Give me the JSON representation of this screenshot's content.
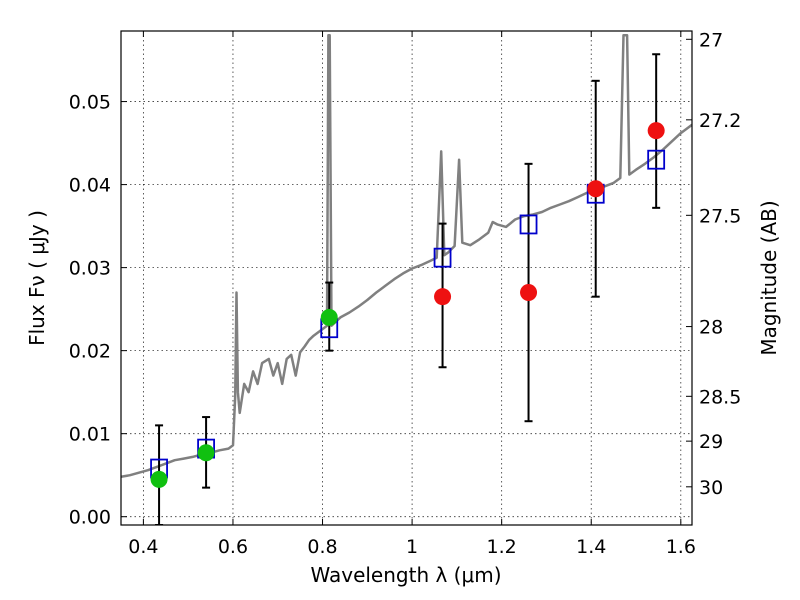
{
  "chart_data": {
    "type": "scatter",
    "xlabel": "Wavelength  λ (μm)",
    "ylabel": "Flux  Fν  ( μJy )",
    "y2label": "Magnitude (AB)",
    "xlim": [
      0.35,
      1.625
    ],
    "ylim": [
      -0.001,
      0.0585
    ],
    "grid": true,
    "x_ticks": [
      {
        "value": 0.4,
        "label": "0.4"
      },
      {
        "value": 0.6,
        "label": "0.6"
      },
      {
        "value": 0.8,
        "label": "0.8"
      },
      {
        "value": 1.0,
        "label": "1"
      },
      {
        "value": 1.2,
        "label": "1.2"
      },
      {
        "value": 1.4,
        "label": "1.4"
      },
      {
        "value": 1.6,
        "label": "1.6"
      }
    ],
    "y_ticks": [
      {
        "value": 0.0,
        "label": "0.00"
      },
      {
        "value": 0.01,
        "label": "0.01"
      },
      {
        "value": 0.02,
        "label": "0.02"
      },
      {
        "value": 0.03,
        "label": "0.03"
      },
      {
        "value": 0.04,
        "label": "0.04"
      },
      {
        "value": 0.05,
        "label": "0.05"
      }
    ],
    "y2_ticks": [
      {
        "flux": 0.0575,
        "label": "27"
      },
      {
        "flux": 0.0478,
        "label": "27.2"
      },
      {
        "flux": 0.0363,
        "label": "27.5"
      },
      {
        "flux": 0.0229,
        "label": "28"
      },
      {
        "flux": 0.0145,
        "label": "28.5"
      },
      {
        "flux": 0.0091,
        "label": "29"
      },
      {
        "flux": 0.0036,
        "label": "30"
      }
    ],
    "series": [
      {
        "kind": "line",
        "color": "#808080",
        "points": [
          [
            0.35,
            0.0048
          ],
          [
            0.37,
            0.005
          ],
          [
            0.39,
            0.0053
          ],
          [
            0.41,
            0.0056
          ],
          [
            0.43,
            0.006
          ],
          [
            0.45,
            0.0064
          ],
          [
            0.47,
            0.0068
          ],
          [
            0.49,
            0.007
          ],
          [
            0.51,
            0.0072
          ],
          [
            0.53,
            0.0075
          ],
          [
            0.55,
            0.0077
          ],
          [
            0.57,
            0.008
          ],
          [
            0.59,
            0.0082
          ],
          [
            0.6,
            0.0086
          ],
          [
            0.605,
            0.0145
          ],
          [
            0.608,
            0.027
          ],
          [
            0.611,
            0.015
          ],
          [
            0.615,
            0.0125
          ],
          [
            0.625,
            0.016
          ],
          [
            0.635,
            0.015
          ],
          [
            0.645,
            0.0175
          ],
          [
            0.655,
            0.016
          ],
          [
            0.665,
            0.0185
          ],
          [
            0.68,
            0.019
          ],
          [
            0.69,
            0.017
          ],
          [
            0.7,
            0.0185
          ],
          [
            0.71,
            0.016
          ],
          [
            0.72,
            0.019
          ],
          [
            0.73,
            0.0195
          ],
          [
            0.74,
            0.017
          ],
          [
            0.75,
            0.0198
          ],
          [
            0.76,
            0.0205
          ],
          [
            0.77,
            0.0213
          ],
          [
            0.78,
            0.0218
          ],
          [
            0.79,
            0.0222
          ],
          [
            0.8,
            0.0226
          ],
          [
            0.81,
            0.023
          ],
          [
            0.813,
            0.058
          ],
          [
            0.816,
            0.058
          ],
          [
            0.82,
            0.023
          ],
          [
            0.84,
            0.024
          ],
          [
            0.86,
            0.0246
          ],
          [
            0.88,
            0.0253
          ],
          [
            0.9,
            0.0261
          ],
          [
            0.92,
            0.027
          ],
          [
            0.94,
            0.0278
          ],
          [
            0.96,
            0.0286
          ],
          [
            0.98,
            0.0293
          ],
          [
            1.0,
            0.0299
          ],
          [
            1.02,
            0.0303
          ],
          [
            1.04,
            0.0308
          ],
          [
            1.055,
            0.0312
          ],
          [
            1.065,
            0.044
          ],
          [
            1.072,
            0.0315
          ],
          [
            1.08,
            0.0318
          ],
          [
            1.095,
            0.0326
          ],
          [
            1.105,
            0.043
          ],
          [
            1.112,
            0.033
          ],
          [
            1.13,
            0.0327
          ],
          [
            1.15,
            0.0334
          ],
          [
            1.17,
            0.0342
          ],
          [
            1.18,
            0.0355
          ],
          [
            1.19,
            0.0352
          ],
          [
            1.21,
            0.0349
          ],
          [
            1.23,
            0.0358
          ],
          [
            1.25,
            0.0362
          ],
          [
            1.27,
            0.0364
          ],
          [
            1.29,
            0.0367
          ],
          [
            1.31,
            0.0372
          ],
          [
            1.33,
            0.0376
          ],
          [
            1.35,
            0.038
          ],
          [
            1.37,
            0.0385
          ],
          [
            1.39,
            0.039
          ],
          [
            1.41,
            0.0395
          ],
          [
            1.43,
            0.0398
          ],
          [
            1.45,
            0.0402
          ],
          [
            1.465,
            0.0408
          ],
          [
            1.472,
            0.058
          ],
          [
            1.48,
            0.058
          ],
          [
            1.485,
            0.0412
          ],
          [
            1.5,
            0.0418
          ],
          [
            1.52,
            0.0425
          ],
          [
            1.54,
            0.0433
          ],
          [
            1.56,
            0.0442
          ],
          [
            1.58,
            0.0452
          ],
          [
            1.6,
            0.0462
          ],
          [
            1.625,
            0.0472
          ]
        ]
      },
      {
        "kind": "errorbar",
        "color": "#000000",
        "bars": [
          {
            "x": 0.435,
            "low": -0.001,
            "high": 0.011
          },
          {
            "x": 0.54,
            "low": 0.0035,
            "high": 0.012
          },
          {
            "x": 0.815,
            "low": 0.02,
            "high": 0.0282
          },
          {
            "x": 1.068,
            "low": 0.018,
            "high": 0.0353
          },
          {
            "x": 1.26,
            "low": 0.0115,
            "high": 0.0425
          },
          {
            "x": 1.41,
            "low": 0.0265,
            "high": 0.0525
          },
          {
            "x": 1.545,
            "low": 0.0372,
            "high": 0.0557
          }
        ]
      },
      {
        "kind": "square",
        "color": "#0000cc",
        "points": [
          [
            0.435,
            0.0058
          ],
          [
            0.54,
            0.0082
          ],
          [
            0.815,
            0.0227
          ],
          [
            1.068,
            0.0312
          ],
          [
            1.26,
            0.0352
          ],
          [
            1.41,
            0.0389
          ],
          [
            1.545,
            0.043
          ]
        ]
      },
      {
        "kind": "circle",
        "color": "#10c010",
        "points": [
          [
            0.435,
            0.0045
          ],
          [
            0.54,
            0.0077
          ],
          [
            0.815,
            0.024
          ]
        ]
      },
      {
        "kind": "circle",
        "color": "#ee1111",
        "points": [
          [
            1.068,
            0.0265
          ],
          [
            1.26,
            0.027
          ],
          [
            1.41,
            0.0395
          ],
          [
            1.545,
            0.0465
          ]
        ]
      }
    ]
  }
}
